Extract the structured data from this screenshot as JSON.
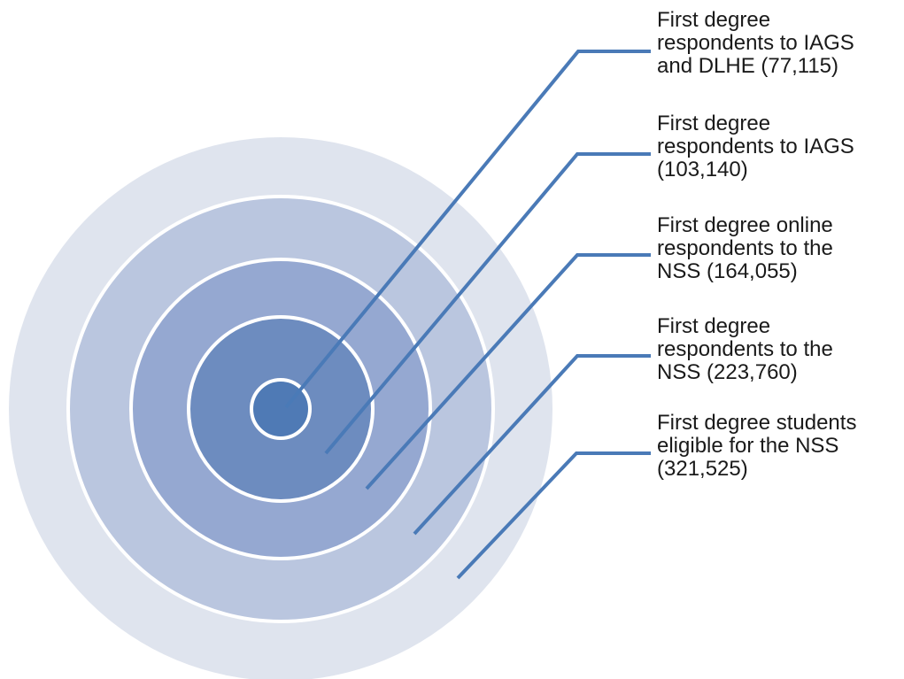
{
  "colors": {
    "ring_outer": "#dfe4ee",
    "ring_2": "#bac6df",
    "ring_3": "#95a8d1",
    "ring_4": "#6d8cbf",
    "ring_core": "#4f7ab5",
    "separator": "#ffffff",
    "leader": "#4a7ab7",
    "text": "#1a1a1a"
  },
  "labels": [
    {
      "lines": [
        "First degree",
        "respondents to IAGS",
        "and DLHE (77,115)"
      ]
    },
    {
      "lines": [
        "First degree",
        "respondents to IAGS",
        "(103,140)"
      ]
    },
    {
      "lines": [
        "First degree online",
        "respondents to the",
        "NSS (164,055)"
      ]
    },
    {
      "lines": [
        "First degree",
        "respondents to the",
        "NSS (223,760)"
      ]
    },
    {
      "lines": [
        "First degree students",
        "eligible  for the NSS",
        "(321,525)"
      ]
    }
  ]
}
